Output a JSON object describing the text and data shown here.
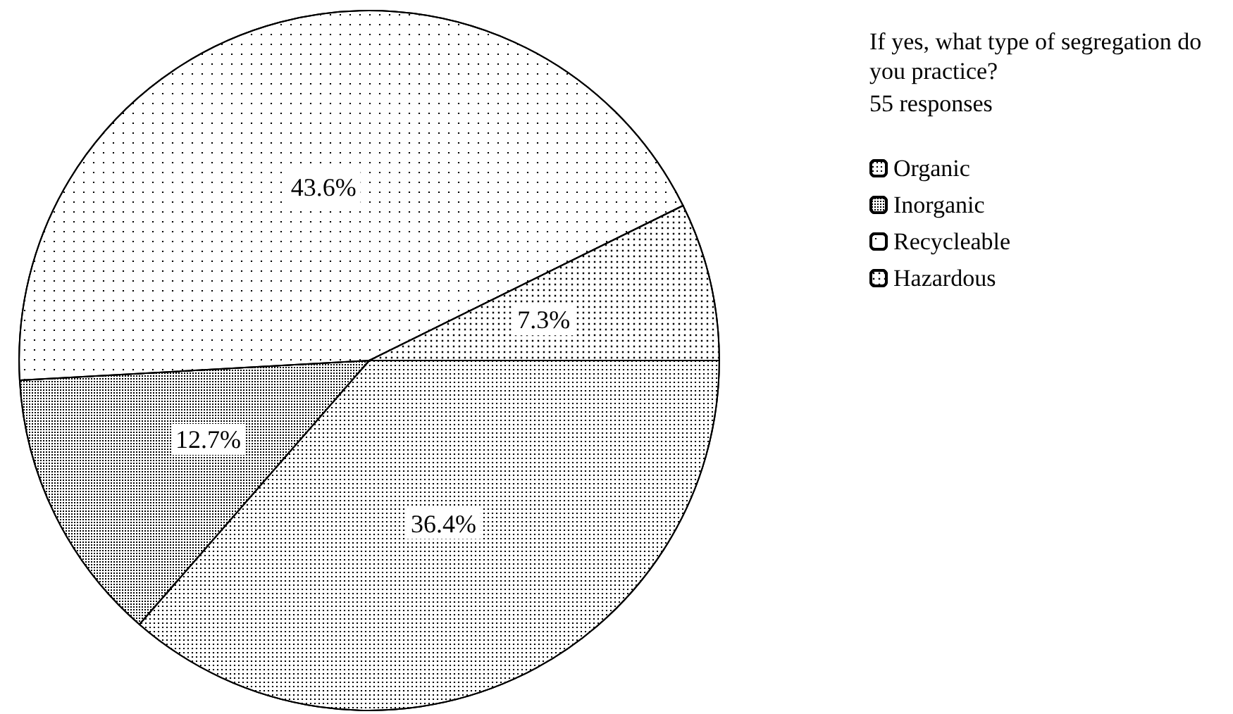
{
  "chart_data": {
    "type": "pie",
    "title": "If yes, what type of segregation do you practice?",
    "subtitle": "55 responses",
    "categories": [
      "Organic",
      "Inorganic",
      "Recycleable",
      "Hazardous"
    ],
    "values": [
      36.4,
      12.7,
      43.6,
      7.3
    ],
    "colors": [
      "#ffffff",
      "#ffffff",
      "#ffffff",
      "#ffffff"
    ],
    "value_labels": [
      "36.4%",
      "12.7%",
      "43.6%",
      "7.3%"
    ],
    "legend": "right"
  }
}
